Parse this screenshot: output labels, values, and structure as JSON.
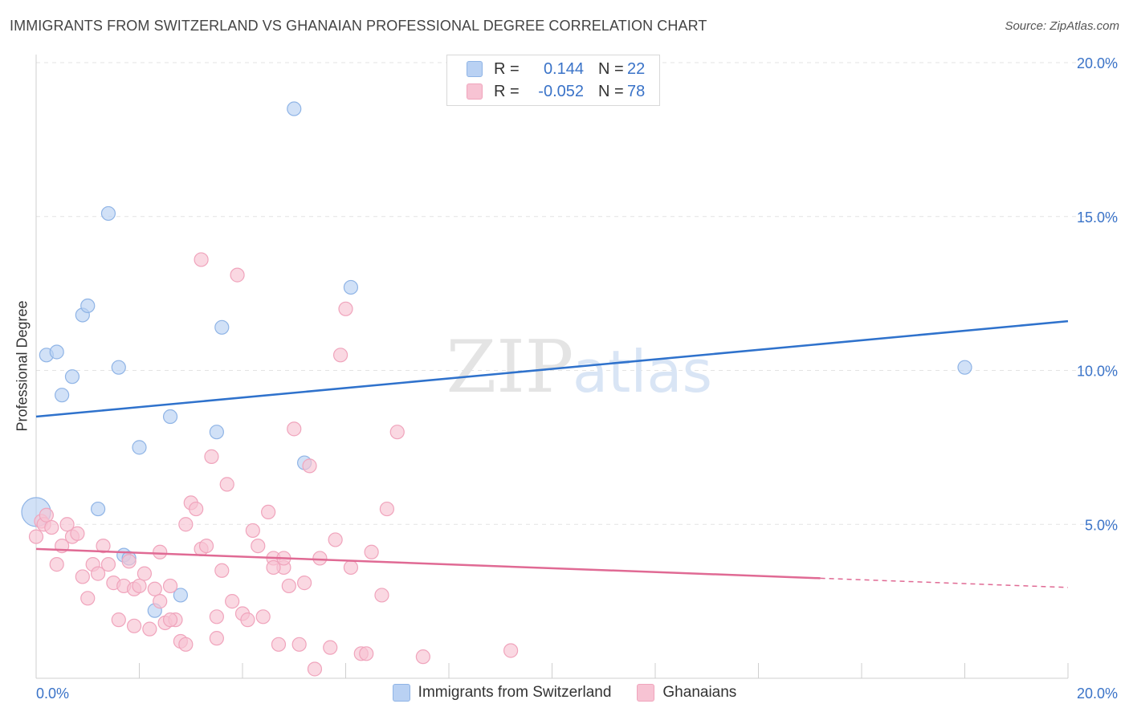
{
  "title": "IMMIGRANTS FROM SWITZERLAND VS GHANAIAN PROFESSIONAL DEGREE CORRELATION CHART",
  "source": "Source: ZipAtlas.com",
  "watermark": {
    "zip": "ZIP",
    "atlas": "atlas"
  },
  "legend": {
    "series1": {
      "r_label": "R =",
      "r_value": "0.144",
      "n_label": "N =",
      "n_value": "22"
    },
    "series2": {
      "r_label": "R =",
      "r_value": "-0.052",
      "n_label": "N =",
      "n_value": "78"
    }
  },
  "colors": {
    "blue_fill": "#b9d1f3",
    "blue_stroke": "#8fb4e6",
    "blue_line": "#2f72cc",
    "pink_fill": "#f7c3d3",
    "pink_stroke": "#f0a4bc",
    "pink_line": "#e06a94",
    "grid": "#e3e3e3",
    "axis_text": "#3a73c8"
  },
  "chart_data": {
    "type": "scatter",
    "title": "IMMIGRANTS FROM SWITZERLAND VS GHANAIAN PROFESSIONAL DEGREE CORRELATION CHART",
    "xlabel": "",
    "ylabel": "Professional Degree",
    "xlim": [
      0,
      20
    ],
    "ylim": [
      0,
      20
    ],
    "x_tick_labels": [
      "0.0%",
      "20.0%"
    ],
    "y_ticks": [
      5,
      10,
      15,
      20
    ],
    "y_tick_labels": [
      "5.0%",
      "10.0%",
      "15.0%",
      "20.0%"
    ],
    "legend_position": "bottom",
    "series": [
      {
        "name": "Immigrants from Switzerland",
        "color": "#b9d1f3",
        "points": [
          [
            0.0,
            5.4
          ],
          [
            0.2,
            10.5
          ],
          [
            0.4,
            10.6
          ],
          [
            0.5,
            9.2
          ],
          [
            0.7,
            9.8
          ],
          [
            0.9,
            11.8
          ],
          [
            1.0,
            12.1
          ],
          [
            1.2,
            5.5
          ],
          [
            1.4,
            15.1
          ],
          [
            1.6,
            10.1
          ],
          [
            1.7,
            4.0
          ],
          [
            1.8,
            3.9
          ],
          [
            2.0,
            7.5
          ],
          [
            2.3,
            2.2
          ],
          [
            2.6,
            8.5
          ],
          [
            2.8,
            2.7
          ],
          [
            3.5,
            8.0
          ],
          [
            3.6,
            11.4
          ],
          [
            5.0,
            18.5
          ],
          [
            5.2,
            7.0
          ],
          [
            6.1,
            12.7
          ],
          [
            18.0,
            10.1
          ]
        ],
        "trend": {
          "x": [
            0,
            20
          ],
          "y": [
            8.5,
            11.6
          ]
        }
      },
      {
        "name": "Ghanaians",
        "color": "#f7c3d3",
        "points": [
          [
            0.0,
            4.6
          ],
          [
            0.1,
            5.1
          ],
          [
            0.15,
            5.0
          ],
          [
            0.2,
            5.3
          ],
          [
            0.3,
            4.9
          ],
          [
            0.4,
            3.7
          ],
          [
            0.5,
            4.3
          ],
          [
            0.6,
            5.0
          ],
          [
            0.7,
            4.6
          ],
          [
            0.8,
            4.7
          ],
          [
            0.9,
            3.3
          ],
          [
            1.0,
            2.6
          ],
          [
            1.1,
            3.7
          ],
          [
            1.2,
            3.4
          ],
          [
            1.3,
            4.3
          ],
          [
            1.4,
            3.7
          ],
          [
            1.5,
            3.1
          ],
          [
            1.6,
            1.9
          ],
          [
            1.7,
            3.0
          ],
          [
            1.8,
            3.8
          ],
          [
            1.9,
            2.9
          ],
          [
            2.0,
            3.0
          ],
          [
            2.1,
            3.4
          ],
          [
            2.2,
            1.6
          ],
          [
            2.3,
            2.9
          ],
          [
            2.4,
            2.5
          ],
          [
            2.5,
            1.8
          ],
          [
            2.6,
            3.0
          ],
          [
            2.7,
            1.9
          ],
          [
            2.8,
            1.2
          ],
          [
            2.9,
            5.0
          ],
          [
            2.6,
            1.9
          ],
          [
            2.9,
            1.1
          ],
          [
            3.0,
            5.7
          ],
          [
            3.1,
            5.5
          ],
          [
            3.2,
            4.2
          ],
          [
            3.3,
            4.3
          ],
          [
            3.4,
            7.2
          ],
          [
            3.5,
            1.3
          ],
          [
            3.6,
            3.5
          ],
          [
            3.7,
            6.3
          ],
          [
            3.8,
            2.5
          ],
          [
            3.9,
            13.1
          ],
          [
            4.0,
            2.1
          ],
          [
            4.1,
            1.9
          ],
          [
            4.2,
            4.8
          ],
          [
            4.3,
            4.3
          ],
          [
            4.4,
            2.0
          ],
          [
            4.5,
            5.4
          ],
          [
            4.6,
            3.9
          ],
          [
            4.7,
            1.1
          ],
          [
            4.8,
            3.6
          ],
          [
            4.9,
            3.0
          ],
          [
            5.0,
            8.1
          ],
          [
            5.1,
            1.1
          ],
          [
            5.2,
            3.1
          ],
          [
            5.3,
            6.9
          ],
          [
            5.4,
            0.3
          ],
          [
            5.5,
            3.9
          ],
          [
            5.7,
            1.0
          ],
          [
            5.8,
            4.5
          ],
          [
            5.9,
            10.5
          ],
          [
            6.0,
            12.0
          ],
          [
            6.1,
            3.6
          ],
          [
            6.3,
            0.8
          ],
          [
            6.4,
            0.8
          ],
          [
            6.5,
            4.1
          ],
          [
            6.7,
            2.7
          ],
          [
            6.8,
            5.5
          ],
          [
            7.0,
            8.0
          ],
          [
            3.2,
            13.6
          ],
          [
            4.8,
            3.9
          ],
          [
            3.5,
            2.0
          ],
          [
            1.9,
            1.7
          ],
          [
            2.4,
            4.1
          ],
          [
            7.5,
            0.7
          ],
          [
            9.2,
            0.9
          ],
          [
            4.6,
            3.6
          ]
        ],
        "trend": {
          "x": [
            0,
            15.2
          ],
          "y": [
            4.2,
            3.25
          ]
        },
        "trend_dashed": {
          "x": [
            15.2,
            20
          ],
          "y": [
            3.25,
            2.95
          ]
        }
      }
    ]
  }
}
